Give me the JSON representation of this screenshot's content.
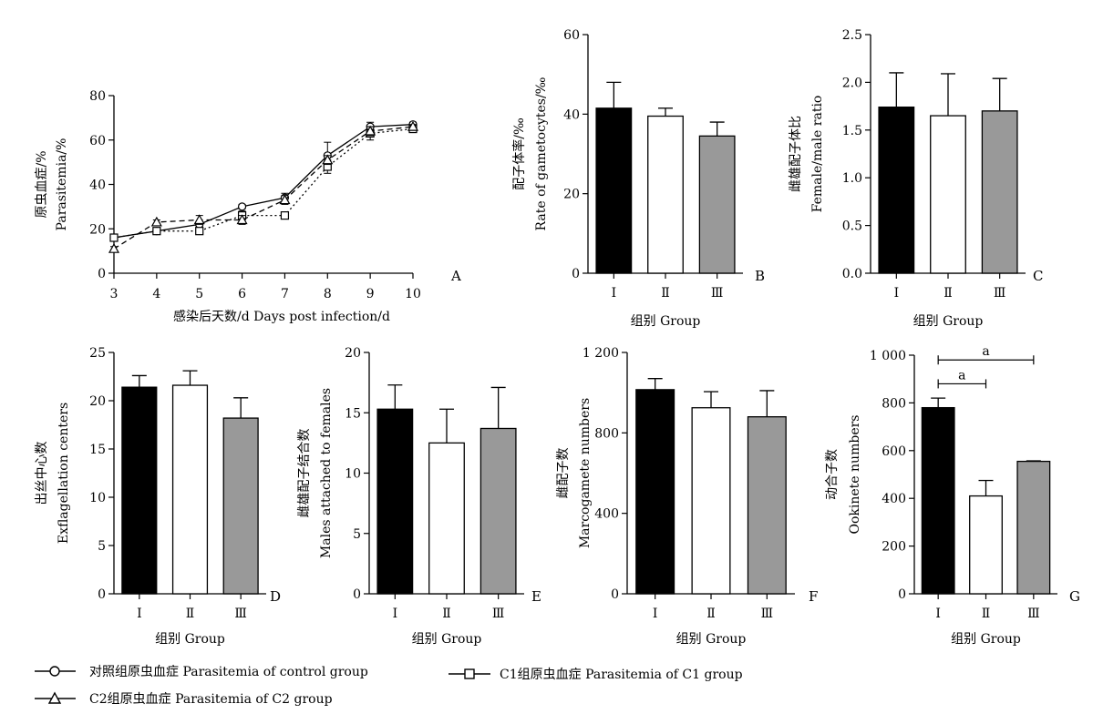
{
  "colors": {
    "group_I": "#000000",
    "group_II": "#ffffff",
    "group_III": "#999999",
    "axis": "#000000"
  },
  "chart_data": [
    {
      "id": "A",
      "type": "line",
      "panel_label": "A",
      "xlabel": "感染后天数/d Days post infection/d",
      "ylabel_cn": "原虫血症/%",
      "ylabel_en": "Parasitemia/%",
      "xlim": [
        3,
        10
      ],
      "ylim": [
        0,
        80
      ],
      "x_ticks": [
        "3",
        "4",
        "5",
        "6",
        "7",
        "8",
        "9",
        "10"
      ],
      "y_ticks": [
        "0",
        "20",
        "40",
        "60",
        "80"
      ],
      "series": [
        {
          "name": "对照组原虫血症 Parasitemia of control group",
          "marker": "circle",
          "dash": "",
          "x": [
            3,
            4,
            5,
            6,
            7,
            8,
            9,
            10
          ],
          "y": [
            16,
            19,
            22,
            30,
            34,
            53,
            66,
            67
          ],
          "err": [
            1,
            1,
            1,
            1,
            2,
            6,
            2,
            1
          ]
        },
        {
          "name": "C1组原虫血症 Parasitemia of C1 group",
          "marker": "square",
          "dash": "2 3",
          "x": [
            3,
            4,
            5,
            6,
            7,
            8,
            9,
            10
          ],
          "y": [
            16,
            19,
            19,
            26,
            26,
            48,
            63,
            65
          ],
          "err": [
            1,
            1,
            1,
            2,
            1,
            3,
            3,
            1
          ]
        },
        {
          "name": "C2组原虫血症 Parasitemia of C2 group",
          "marker": "triangle",
          "dash": "6 4",
          "x": [
            3,
            4,
            5,
            6,
            7,
            8,
            9,
            10
          ],
          "y": [
            11,
            23,
            24,
            24,
            33,
            51,
            64,
            66
          ],
          "err": [
            1,
            1,
            2,
            2,
            2,
            2,
            2,
            1
          ]
        }
      ]
    },
    {
      "id": "B",
      "type": "bar",
      "panel_label": "B",
      "ylabel_cn": "配子体率/‰",
      "ylabel_en": "Rate of gametocytes/‰",
      "xlabel": "组别 Group",
      "categories": [
        "Ⅰ",
        "Ⅱ",
        "Ⅲ"
      ],
      "ylim": [
        0,
        60
      ],
      "y_ticks": [
        "0",
        "20",
        "40",
        "60"
      ],
      "values": [
        41.5,
        39.5,
        34.5
      ],
      "errors": [
        6.5,
        2,
        3.5
      ]
    },
    {
      "id": "C",
      "type": "bar",
      "panel_label": "C",
      "ylabel_cn": "雌雄配子体比",
      "ylabel_en": "Female/male ratio",
      "xlabel": "组别 Group",
      "categories": [
        "Ⅰ",
        "Ⅱ",
        "Ⅲ"
      ],
      "ylim": [
        0,
        2.5
      ],
      "y_ticks": [
        "0.0",
        "0.5",
        "1.0",
        "1.5",
        "2.0",
        "2.5"
      ],
      "values": [
        1.74,
        1.65,
        1.7
      ],
      "errors": [
        0.36,
        0.44,
        0.34
      ]
    },
    {
      "id": "D",
      "type": "bar",
      "panel_label": "D",
      "ylabel_cn": "出丝中心数",
      "ylabel_en": "Exflagellation centers",
      "xlabel": "组别 Group",
      "categories": [
        "Ⅰ",
        "Ⅱ",
        "Ⅲ"
      ],
      "ylim": [
        0,
        25
      ],
      "y_ticks": [
        "0",
        "5",
        "10",
        "15",
        "20",
        "25"
      ],
      "values": [
        21.4,
        21.6,
        18.2
      ],
      "errors": [
        1.2,
        1.5,
        2.1
      ]
    },
    {
      "id": "E",
      "type": "bar",
      "panel_label": "E",
      "ylabel_cn": "雌雄配子结合数",
      "ylabel_en": "Males attached to females",
      "xlabel": "组别 Group",
      "categories": [
        "Ⅰ",
        "Ⅱ",
        "Ⅲ"
      ],
      "ylim": [
        0,
        20
      ],
      "y_ticks": [
        "0",
        "5",
        "10",
        "15",
        "20"
      ],
      "values": [
        15.3,
        12.5,
        13.7
      ],
      "errors": [
        2.0,
        2.8,
        3.4
      ]
    },
    {
      "id": "F",
      "type": "bar",
      "panel_label": "F",
      "ylabel_cn": "雌配子数",
      "ylabel_en": "Marcogamete numbers",
      "xlabel": "组别 Group",
      "categories": [
        "Ⅰ",
        "Ⅱ",
        "Ⅲ"
      ],
      "ylim": [
        0,
        1200
      ],
      "y_ticks": [
        "0",
        "400",
        "800",
        "1 200"
      ],
      "values": [
        1015,
        925,
        880
      ],
      "errors": [
        55,
        80,
        130
      ]
    },
    {
      "id": "G",
      "type": "bar",
      "panel_label": "G",
      "ylabel_cn": "动合子数",
      "ylabel_en": "Ookinete numbers",
      "xlabel": "组别 Group",
      "categories": [
        "Ⅰ",
        "Ⅱ",
        "Ⅲ"
      ],
      "ylim": [
        0,
        1000
      ],
      "y_ticks": [
        "0",
        "200",
        "400",
        "600",
        "800",
        "1 000"
      ],
      "values": [
        780,
        410,
        555
      ],
      "errors": [
        40,
        65,
        2
      ],
      "significance": [
        {
          "from": 0,
          "to": 1,
          "label": "a",
          "y": 880
        },
        {
          "from": 0,
          "to": 2,
          "label": "a",
          "y": 980
        }
      ]
    }
  ],
  "legend": {
    "control": "对照组原虫血症 Parasitemia of control group",
    "c1": "C1组原虫血症 Parasitemia of C1 group",
    "c2": "C2组原虫血症 Parasitemia of C2 group"
  }
}
